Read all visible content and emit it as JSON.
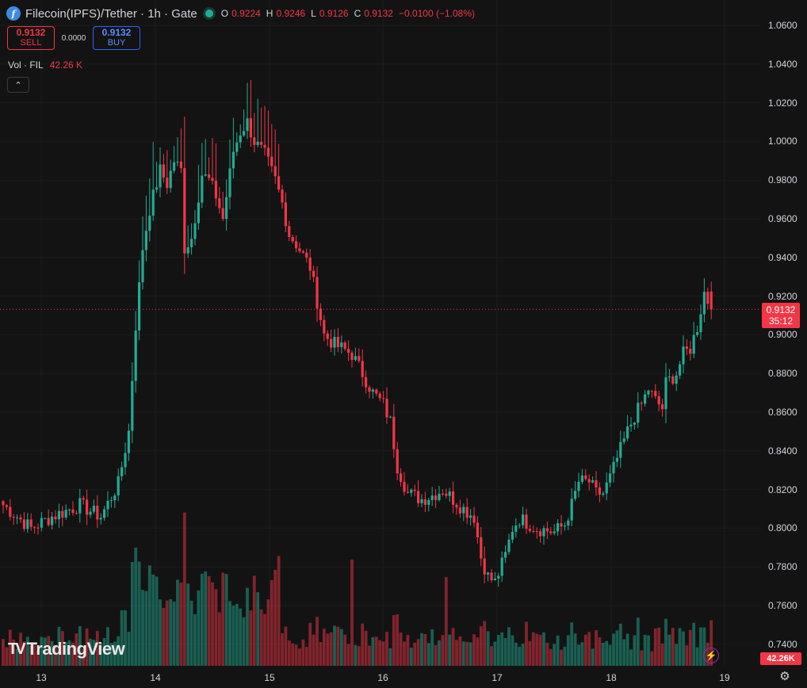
{
  "header": {
    "coin_icon_glyph": "f",
    "title": "Filecoin(IPFS)/Tether · 1h · Gate",
    "ohlc": [
      {
        "key": "O",
        "value": "0.9224"
      },
      {
        "key": "H",
        "value": "0.9246"
      },
      {
        "key": "L",
        "value": "0.9126"
      },
      {
        "key": "C",
        "value": "0.9132"
      }
    ],
    "change": "−0.0100 (−1.08%)"
  },
  "trade": {
    "sell_price": "0.9132",
    "sell_label": "SELL",
    "spread": "0.0000",
    "buy_price": "0.9132",
    "buy_label": "BUY"
  },
  "volume": {
    "label": "Vol · FIL",
    "value": "42.26 K",
    "badge": "42.26K"
  },
  "collapse_glyph": "⌃",
  "current_price": {
    "price": "0.9132",
    "countdown": "35:12"
  },
  "price_axis": [
    "1.0600",
    "1.0400",
    "1.0200",
    "1.0000",
    "0.9800",
    "0.9600",
    "0.9400",
    "0.9200",
    "0.9000",
    "0.8800",
    "0.8600",
    "0.8400",
    "0.8200",
    "0.8000",
    "0.7800",
    "0.7600",
    "0.7400"
  ],
  "time_axis": [
    "13",
    "14",
    "15",
    "16",
    "17",
    "18",
    "19"
  ],
  "logo_text": "TradingView",
  "colors": {
    "up": "#22ab94",
    "down": "#f23645",
    "background": "#131313",
    "accent": "#2962ff"
  },
  "icons": {
    "coin": "filecoin-icon",
    "status": "market-open-dot",
    "bolt": "lightning-icon",
    "settings": "gear-icon"
  },
  "chart_data": {
    "type": "candlestick",
    "interval": "1h",
    "ylim": [
      0.732,
      1.068
    ],
    "anchors": [
      [
        0,
        0.812
      ],
      [
        8,
        0.8
      ],
      [
        14,
        0.806
      ],
      [
        22,
        0.812
      ],
      [
        28,
        0.806
      ],
      [
        33,
        0.823
      ],
      [
        36,
        0.85
      ],
      [
        38,
        0.905
      ],
      [
        40,
        0.945
      ],
      [
        42,
        0.965
      ],
      [
        45,
        0.985
      ],
      [
        47,
        0.978
      ],
      [
        49,
        0.99
      ],
      [
        51,
        0.985
      ],
      [
        52,
        0.945
      ],
      [
        54,
        0.95
      ],
      [
        57,
        0.983
      ],
      [
        59,
        0.98
      ],
      [
        61,
        0.972
      ],
      [
        63,
        0.96
      ],
      [
        66,
        0.995
      ],
      [
        68,
        1.005
      ],
      [
        70,
        1.01
      ],
      [
        72,
        1.0
      ],
      [
        75,
        0.993
      ],
      [
        78,
        0.98
      ],
      [
        80,
        0.968
      ],
      [
        82,
        0.952
      ],
      [
        84,
        0.947
      ],
      [
        88,
        0.935
      ],
      [
        92,
        0.9
      ],
      [
        95,
        0.895
      ],
      [
        100,
        0.89
      ],
      [
        103,
        0.88
      ],
      [
        106,
        0.87
      ],
      [
        109,
        0.864
      ],
      [
        111,
        0.855
      ],
      [
        113,
        0.832
      ],
      [
        116,
        0.818
      ],
      [
        120,
        0.815
      ],
      [
        123,
        0.817
      ],
      [
        126,
        0.82
      ],
      [
        129,
        0.815
      ],
      [
        132,
        0.81
      ],
      [
        135,
        0.806
      ],
      [
        137,
        0.785
      ],
      [
        139,
        0.775
      ],
      [
        141,
        0.772
      ],
      [
        144,
        0.786
      ],
      [
        146,
        0.8
      ],
      [
        148,
        0.805
      ],
      [
        151,
        0.802
      ],
      [
        153,
        0.8
      ],
      [
        158,
        0.798
      ],
      [
        161,
        0.802
      ],
      [
        163,
        0.812
      ],
      [
        165,
        0.824
      ],
      [
        168,
        0.824
      ],
      [
        170,
        0.818
      ],
      [
        172,
        0.818
      ],
      [
        174,
        0.826
      ],
      [
        176,
        0.836
      ],
      [
        179,
        0.85
      ],
      [
        181,
        0.858
      ],
      [
        183,
        0.864
      ],
      [
        185,
        0.872
      ],
      [
        187,
        0.866
      ],
      [
        189,
        0.862
      ],
      [
        190,
        0.875
      ],
      [
        193,
        0.88
      ],
      [
        195,
        0.89
      ],
      [
        197,
        0.893
      ],
      [
        199,
        0.904
      ],
      [
        201,
        0.922
      ],
      [
        203,
        0.913
      ]
    ],
    "volume_range": [
      0,
      30000
    ],
    "last_close": 0.9132,
    "last_volume": "42.26K"
  }
}
